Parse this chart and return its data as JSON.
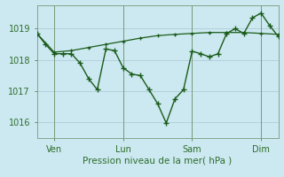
{
  "title": "",
  "xlabel": "Pression niveau de la mer( hPa )",
  "background_color": "#cce8f0",
  "plot_bg_color": "#cce8f0",
  "line_color": "#1a5c1a",
  "marker_color": "#1a5c1a",
  "grid_color": "#aac8d4",
  "tick_color": "#2d6e2d",
  "label_color": "#2d6e2d",
  "ylim": [
    1015.5,
    1019.75
  ],
  "yticks": [
    1016,
    1017,
    1018,
    1019
  ],
  "xtick_labels": [
    "Ven",
    "Lun",
    "Sam",
    "Dim"
  ],
  "xtick_positions": [
    12,
    60,
    108,
    156
  ],
  "xlim": [
    0,
    168
  ],
  "series1_x": [
    0,
    6,
    12,
    18,
    24,
    30,
    36,
    42,
    48,
    54,
    60,
    66,
    72,
    78,
    84,
    90,
    96,
    102,
    108,
    114,
    120,
    126,
    132,
    138,
    144,
    150,
    156,
    162,
    168
  ],
  "series1_y": [
    1018.85,
    1018.5,
    1018.2,
    1018.2,
    1018.2,
    1017.9,
    1017.4,
    1017.05,
    1018.35,
    1018.3,
    1017.75,
    1017.55,
    1017.5,
    1017.05,
    1016.6,
    1015.98,
    1016.75,
    1017.05,
    1018.28,
    1018.2,
    1018.1,
    1018.2,
    1018.85,
    1019.0,
    1018.85,
    1019.35,
    1019.5,
    1019.1,
    1018.75
  ],
  "series2_x": [
    0,
    12,
    24,
    36,
    48,
    60,
    72,
    84,
    96,
    108,
    120,
    132,
    144,
    156,
    168
  ],
  "series2_y": [
    1018.85,
    1018.25,
    1018.3,
    1018.4,
    1018.5,
    1018.6,
    1018.7,
    1018.78,
    1018.82,
    1018.85,
    1018.88,
    1018.88,
    1018.88,
    1018.85,
    1018.82
  ],
  "vline_color": "#7a9a7a",
  "vline_positions": [
    12,
    60,
    108,
    156
  ],
  "xlabel_fontsize": 7.5,
  "tick_fontsize": 7
}
